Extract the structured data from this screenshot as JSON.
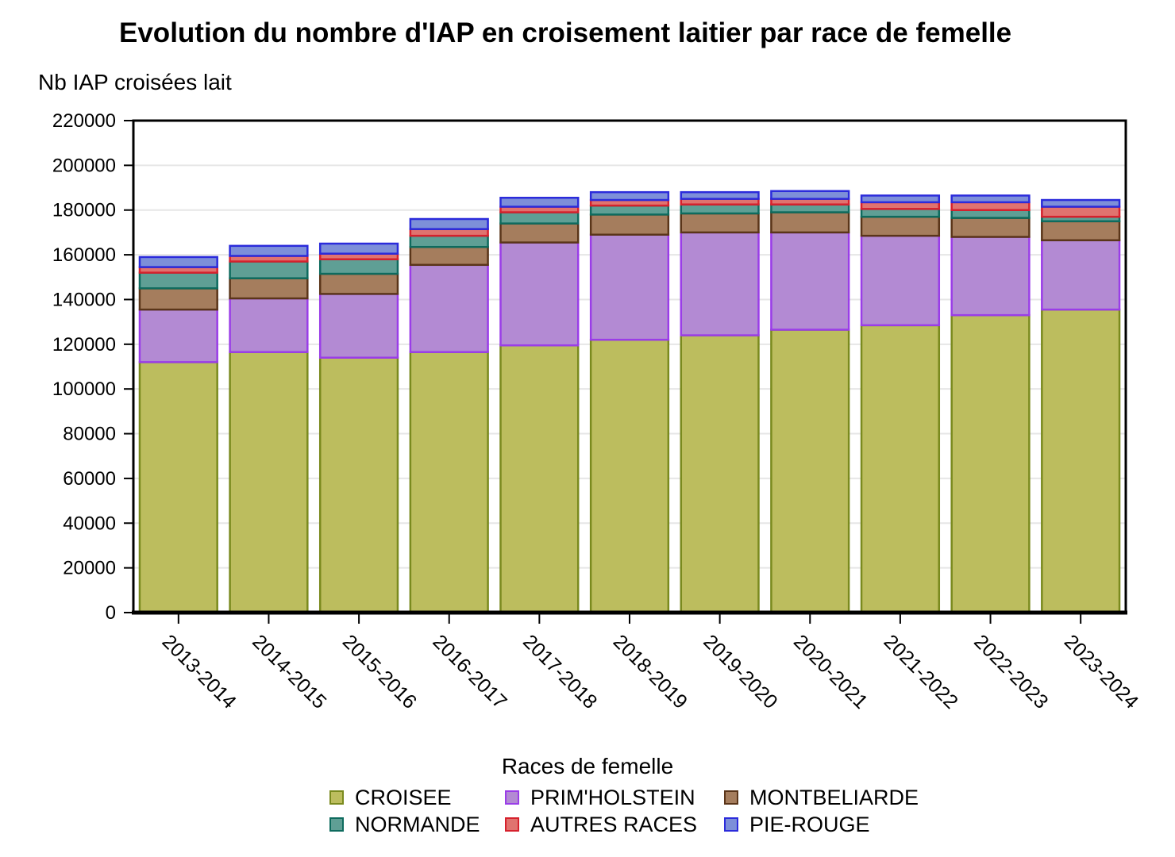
{
  "chart_data": {
    "type": "bar",
    "stacked": true,
    "title": "Evolution du nombre d'IAP en croisement laitier par race de femelle",
    "ylabel": "Nb IAP croisées lait",
    "xlabel": "",
    "ylim": [
      0,
      220000
    ],
    "yticks": [
      0,
      20000,
      40000,
      60000,
      80000,
      100000,
      120000,
      140000,
      160000,
      180000,
      200000,
      220000
    ],
    "categories": [
      "2013-2014",
      "2014-2015",
      "2015-2016",
      "2016-2017",
      "2017-2018",
      "2018-2019",
      "2019-2020",
      "2020-2021",
      "2021-2022",
      "2022-2023",
      "2023-2024"
    ],
    "legend_title": "Races de femelle",
    "series": [
      {
        "name": "CROISEE",
        "fill": "#bcbd5e",
        "stroke": "#7a8a1e",
        "values": [
          112000,
          116500,
          114000,
          116500,
          119500,
          122000,
          124000,
          126500,
          128500,
          133000,
          135500
        ]
      },
      {
        "name": "PRIM'HOLSTEIN",
        "fill": "#b38ad3",
        "stroke": "#9a3de8",
        "values": [
          23500,
          24000,
          28500,
          39000,
          46000,
          47000,
          46000,
          43500,
          40000,
          35000,
          31000
        ]
      },
      {
        "name": "MONTBELIARDE",
        "fill": "#a57d5d",
        "stroke": "#5a3519",
        "values": [
          9500,
          9000,
          9000,
          8000,
          8500,
          9000,
          8500,
          9000,
          8500,
          8500,
          8500
        ]
      },
      {
        "name": "NORMANDE",
        "fill": "#5f9f95",
        "stroke": "#0e6b5e",
        "values": [
          7000,
          7500,
          6500,
          5000,
          5000,
          4000,
          4000,
          3500,
          3500,
          3500,
          2000
        ]
      },
      {
        "name": "AUTRES RACES",
        "fill": "#e0736f",
        "stroke": "#d6212d",
        "values": [
          2500,
          2500,
          2500,
          3000,
          2500,
          2500,
          2500,
          2500,
          3000,
          3500,
          4500
        ]
      },
      {
        "name": "PIE-ROUGE",
        "fill": "#7d8fd9",
        "stroke": "#2b2bdb",
        "values": [
          4500,
          4500,
          4500,
          4500,
          4000,
          3500,
          3000,
          3500,
          3000,
          3000,
          3000
        ]
      }
    ]
  }
}
